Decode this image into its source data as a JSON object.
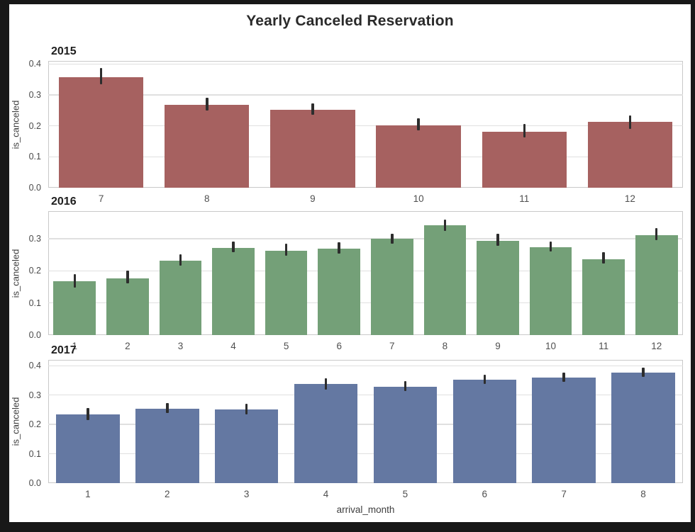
{
  "title": "Yearly Canceled Reservation",
  "xlabel": "arrival_month",
  "ylabel": "is_canceled",
  "colors": {
    "page_background": "#181818",
    "figure_background": "#ffffff",
    "grid": "#e0e0e0",
    "axes_border": "#c9c9c9",
    "error_bar": "#2d2d2d"
  },
  "chart_data": [
    {
      "type": "bar",
      "title": "2015",
      "bar_color": "#a66160",
      "categories": [
        "7",
        "8",
        "9",
        "10",
        "11",
        "12"
      ],
      "values": [
        0.358,
        0.268,
        0.252,
        0.202,
        0.182,
        0.212
      ],
      "ci_low": [
        0.335,
        0.249,
        0.236,
        0.186,
        0.163,
        0.191
      ],
      "ci_high": [
        0.387,
        0.29,
        0.273,
        0.224,
        0.206,
        0.233
      ],
      "ytick_labels": [
        "0.0",
        "0.1",
        "0.2",
        "0.3",
        "0.4"
      ],
      "ylim": [
        0,
        0.41
      ],
      "grid": "on",
      "ylabel": "is_canceled"
    },
    {
      "type": "bar",
      "title": "2016",
      "bar_color": "#74a078",
      "categories": [
        "1",
        "2",
        "3",
        "4",
        "5",
        "6",
        "7",
        "8",
        "9",
        "10",
        "11",
        "12"
      ],
      "values": [
        0.168,
        0.177,
        0.231,
        0.272,
        0.263,
        0.268,
        0.299,
        0.341,
        0.293,
        0.274,
        0.237,
        0.312
      ],
      "ci_low": [
        0.148,
        0.16,
        0.217,
        0.257,
        0.248,
        0.253,
        0.285,
        0.325,
        0.279,
        0.26,
        0.222,
        0.295
      ],
      "ci_high": [
        0.189,
        0.2,
        0.251,
        0.292,
        0.285,
        0.288,
        0.316,
        0.359,
        0.315,
        0.291,
        0.258,
        0.334
      ],
      "ytick_labels": [
        "0.0",
        "0.1",
        "0.2",
        "0.3"
      ],
      "ylim": [
        0,
        0.386
      ],
      "grid": "on",
      "ylabel": "is_canceled"
    },
    {
      "type": "bar",
      "title": "2017",
      "bar_color": "#6478a2",
      "categories": [
        "1",
        "2",
        "3",
        "4",
        "5",
        "6",
        "7",
        "8"
      ],
      "values": [
        0.234,
        0.254,
        0.251,
        0.337,
        0.329,
        0.352,
        0.359,
        0.377
      ],
      "ci_low": [
        0.215,
        0.239,
        0.234,
        0.319,
        0.314,
        0.337,
        0.344,
        0.362
      ],
      "ci_high": [
        0.256,
        0.273,
        0.271,
        0.357,
        0.347,
        0.37,
        0.377,
        0.393
      ],
      "ytick_labels": [
        "0.0",
        "0.1",
        "0.2",
        "0.3",
        "0.4"
      ],
      "ylim": [
        0,
        0.42
      ],
      "grid": "on",
      "ylabel": "is_canceled",
      "xlabel": "arrival_month"
    }
  ]
}
